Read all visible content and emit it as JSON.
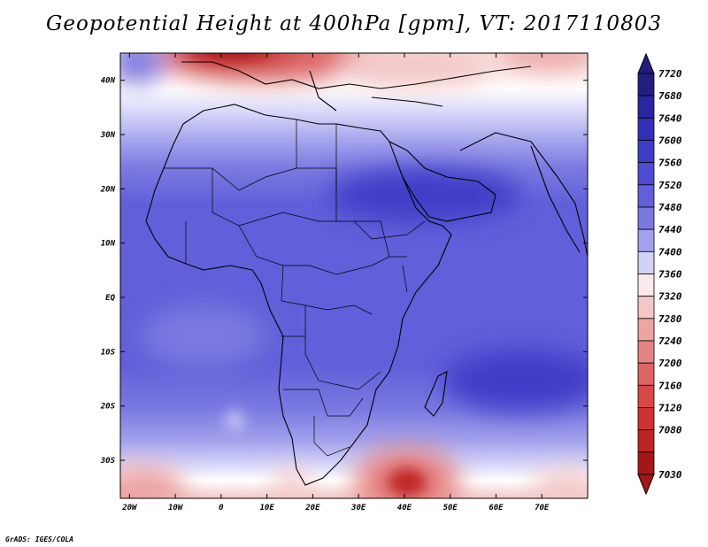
{
  "title": "Geopotential Height at 400hPa [gpm], VT: 2017110803",
  "credit": "GrADS: IGES/COLA",
  "map": {
    "variable": "Geopotential Height",
    "level": "400hPa",
    "units": "gpm",
    "lon_range": [
      -22,
      80
    ],
    "lat_range": [
      -37,
      45
    ],
    "lon_ticks": [
      {
        "value": -20,
        "label": "20W"
      },
      {
        "value": -10,
        "label": "10W"
      },
      {
        "value": 0,
        "label": "0"
      },
      {
        "value": 10,
        "label": "10E"
      },
      {
        "value": 20,
        "label": "20E"
      },
      {
        "value": 30,
        "label": "30E"
      },
      {
        "value": 40,
        "label": "40E"
      },
      {
        "value": 50,
        "label": "50E"
      },
      {
        "value": 60,
        "label": "60E"
      },
      {
        "value": 70,
        "label": "70E"
      }
    ],
    "lat_ticks": [
      {
        "value": 40,
        "label": "40N"
      },
      {
        "value": 30,
        "label": "30N"
      },
      {
        "value": 20,
        "label": "20N"
      },
      {
        "value": 10,
        "label": "10N"
      },
      {
        "value": 0,
        "label": "EQ"
      },
      {
        "value": -10,
        "label": "10S"
      },
      {
        "value": -20,
        "label": "20S"
      },
      {
        "value": -30,
        "label": "30S"
      }
    ]
  },
  "colorbar": {
    "levels": [
      {
        "label": "7720",
        "color": "#231d7e"
      },
      {
        "label": "7680",
        "color": "#2a25a0"
      },
      {
        "label": "7640",
        "color": "#3330b8"
      },
      {
        "label": "7600",
        "color": "#3f3cc8"
      },
      {
        "label": "7560",
        "color": "#4e4cd2"
      },
      {
        "label": "7520",
        "color": "#625fda"
      },
      {
        "label": "7480",
        "color": "#7b79e0"
      },
      {
        "label": "7440",
        "color": "#a2a1ec"
      },
      {
        "label": "7400",
        "color": "#d2d2f8"
      },
      {
        "label": "7360",
        "color": "#fbe8e8"
      },
      {
        "label": "7320",
        "color": "#f3c7c7"
      },
      {
        "label": "7280",
        "color": "#eca4a4"
      },
      {
        "label": "7240",
        "color": "#e48383"
      },
      {
        "label": "7200",
        "color": "#dd6464"
      },
      {
        "label": "7160",
        "color": "#d84848"
      },
      {
        "label": "7120",
        "color": "#cf3232"
      },
      {
        "label": "7080",
        "color": "#bf2424"
      },
      {
        "label": "7030",
        "color": "#a41717"
      }
    ]
  }
}
